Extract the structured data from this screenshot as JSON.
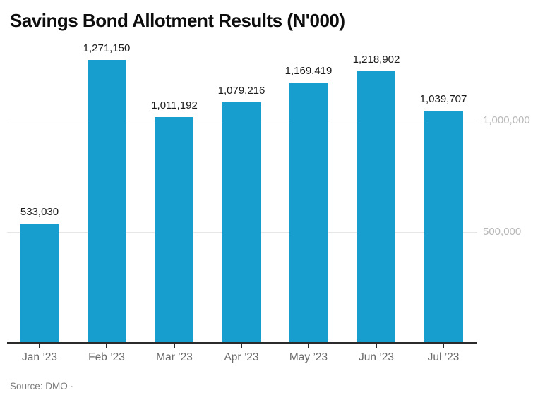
{
  "header": {
    "title": "Savings Bond Allotment Results (N'000)"
  },
  "footer": {
    "source": "Source: DMO ·"
  },
  "chart_data": {
    "type": "bar",
    "title": "Savings Bond Allotment Results (N'000)",
    "categories": [
      "Jan ’23",
      "Feb ’23",
      "Mar ’23",
      "Apr ’23",
      "May ’23",
      "Jun ’23",
      "Jul ’23"
    ],
    "values": [
      533030,
      1271150,
      1011192,
      1079216,
      1169419,
      1218902,
      1039707
    ],
    "value_labels": [
      "533,030",
      "1,271,150",
      "1,011,192",
      "1,079,216",
      "1,169,419",
      "1,218,902",
      "1,039,707"
    ],
    "xlabel": "",
    "ylabel": "",
    "ylim": [
      0,
      1550000
    ],
    "y_ticks": [
      {
        "value": 500000,
        "label": "500,000"
      },
      {
        "value": 1000000,
        "label": "1,000,000"
      }
    ],
    "grid": true,
    "legend": "none",
    "colors": {
      "bar": "#179DCE",
      "gridline": "#e7e7e7",
      "axis": "#2b2b2b",
      "value_label": "#1a1a1a",
      "y_tick_label": "#b8b8b8",
      "x_tick_label": "#6b6b6b"
    }
  }
}
